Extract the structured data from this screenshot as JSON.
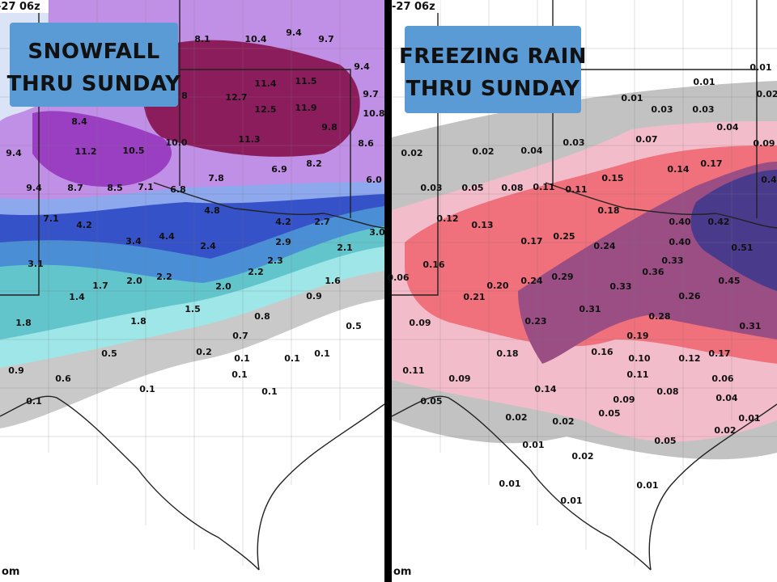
{
  "left_panel": {
    "timestamp": "-27 06z",
    "title": [
      "SNOWFALL",
      "THRU SUNDAY"
    ],
    "credit": "om",
    "labels": [
      "8.1",
      "10.4",
      "9.4",
      "9.7",
      "9.4",
      "11.4",
      "11.5",
      "8",
      "12.7",
      "12.5",
      "11.9",
      "9.7",
      "10.8",
      "8.4",
      "9.8",
      "9.4",
      "11.2",
      "10.5",
      "10.0",
      "11.3",
      "8.6",
      "8.2",
      "6.9",
      "7.8",
      "6.0",
      "9.4",
      "8.7",
      "8.5",
      "7.1",
      "6.8",
      "4.8",
      "7.1",
      "4.2",
      "4.2",
      "2.7",
      "3.0",
      "3.4",
      "4.4",
      "2.9",
      "2.4",
      "2.1",
      "3.1",
      "2.3",
      "2.2",
      "2.0",
      "1.7",
      "2.2",
      "1.6",
      "2.0",
      "1.4",
      "0.9",
      "1.5",
      "0.8",
      "1.8",
      "1.8",
      "0.5",
      "0.7",
      "0.5",
      "0.2",
      "0.1",
      "0.1",
      "0.1",
      "0.9",
      "0.1",
      "0.6",
      "0.1",
      "0.1",
      "0.1"
    ]
  },
  "right_panel": {
    "timestamp": "-27 06z",
    "title": [
      "FREEZING RAIN",
      "THRU SUNDAY"
    ],
    "credit": "om",
    "labels": [
      "0.01",
      "0.01",
      "0.01",
      "0.03",
      "0.03",
      "0.02",
      "0.04",
      "0.03",
      "0.07",
      "0.09",
      "0.02",
      "0.02",
      "0.04",
      "0.17",
      "0.14",
      "0.15",
      "0.4",
      "0.03",
      "0.05",
      "0.08",
      "0.11",
      "0.11",
      "0.18",
      "0.12",
      "0.13",
      "0.40",
      "0.42",
      "0.25",
      "0.17",
      "0.24",
      "0.40",
      "0.51",
      "0.16",
      "0.33",
      "0.06",
      "0.36",
      "0.29",
      "0.24",
      "0.20",
      "0.45",
      "0.33",
      "0.21",
      "0.26",
      "0.31",
      "0.28",
      "0.09",
      "0.23",
      "0.31",
      "0.19",
      "0.18",
      "0.16",
      "0.10",
      "0.12",
      "0.17",
      "0.11",
      "0.11",
      "0.06",
      "0.09",
      "0.14",
      "0.08",
      "0.04",
      "0.05",
      "0.09",
      "0.05",
      "0.02",
      "0.01",
      "0.02",
      "0.02",
      "0.05",
      "0.01",
      "0.02",
      "0.01",
      "0.01",
      "0.01"
    ]
  }
}
